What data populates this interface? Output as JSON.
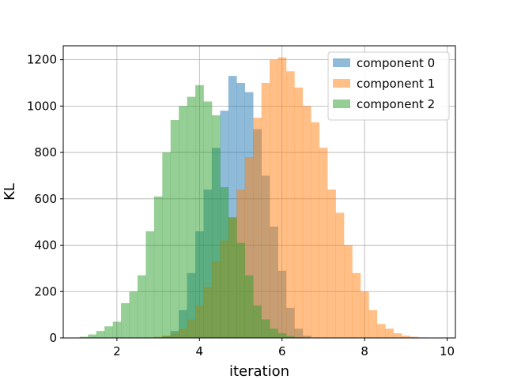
{
  "chart_data": {
    "type": "histogram",
    "xlabel": "iteration",
    "ylabel": "KL",
    "xlim": [
      0.7,
      10.2
    ],
    "ylim": [
      0,
      1260
    ],
    "xticks": [
      2,
      4,
      6,
      8,
      10
    ],
    "yticks": [
      0,
      200,
      400,
      600,
      800,
      1000,
      1200
    ],
    "grid": true,
    "legend_position": "top-right",
    "bins": {
      "width": 0.2,
      "start": 1.1,
      "count": 44
    },
    "series": [
      {
        "name": "component 0",
        "color": "#1f77b4",
        "opacity": 0.5,
        "bin_start": 2.9,
        "values": [
          0,
          8,
          30,
          120,
          280,
          460,
          640,
          820,
          980,
          1130,
          1100,
          1060,
          900,
          700,
          480,
          290,
          130,
          40,
          10
        ]
      },
      {
        "name": "component 1",
        "color": "#ff7f0e",
        "opacity": 0.5,
        "bin_start": 2.9,
        "values": [
          5,
          10,
          20,
          40,
          80,
          140,
          220,
          330,
          420,
          520,
          640,
          780,
          950,
          1100,
          1200,
          1210,
          1150,
          1080,
          1000,
          930,
          820,
          640,
          540,
          400,
          280,
          200,
          120,
          60,
          40,
          20,
          10,
          5,
          2,
          1
        ]
      },
      {
        "name": "component 2",
        "color": "#2ca02c",
        "opacity": 0.5,
        "bin_start": 1.1,
        "values": [
          5,
          15,
          30,
          50,
          70,
          150,
          200,
          270,
          460,
          610,
          800,
          940,
          1000,
          1040,
          1090,
          1020,
          960,
          650,
          520,
          410,
          270,
          140,
          80,
          40,
          20,
          8,
          3,
          1
        ]
      }
    ]
  }
}
